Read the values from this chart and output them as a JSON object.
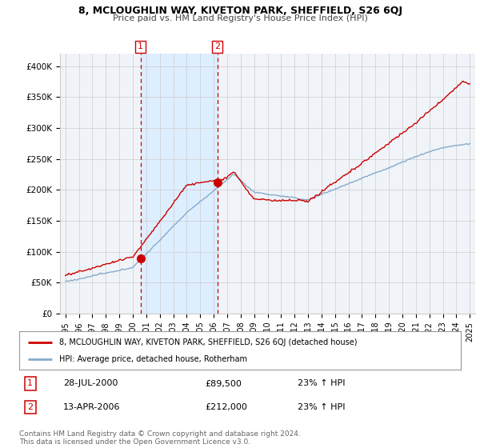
{
  "title": "8, MCLOUGHLIN WAY, KIVETON PARK, SHEFFIELD, S26 6QJ",
  "subtitle": "Price paid vs. HM Land Registry's House Price Index (HPI)",
  "legend_line1": "8, MCLOUGHLIN WAY, KIVETON PARK, SHEFFIELD, S26 6QJ (detached house)",
  "legend_line2": "HPI: Average price, detached house, Rotherham",
  "sale1_label": "1",
  "sale1_date": "28-JUL-2000",
  "sale1_price": "£89,500",
  "sale1_hpi": "23% ↑ HPI",
  "sale2_label": "2",
  "sale2_date": "13-APR-2006",
  "sale2_price": "£212,000",
  "sale2_hpi": "23% ↑ HPI",
  "footer": "Contains HM Land Registry data © Crown copyright and database right 2024.\nThis data is licensed under the Open Government Licence v3.0.",
  "property_color": "#cc0000",
  "hpi_color": "#88aacc",
  "shade_color": "#ddeeff",
  "background_color": "#ffffff",
  "plot_bg_color": "#f0f4f8",
  "grid_color": "#cccccc",
  "ylim": [
    0,
    420000
  ],
  "yticks": [
    0,
    50000,
    100000,
    150000,
    200000,
    250000,
    300000,
    350000,
    400000
  ],
  "ytick_labels": [
    "£0",
    "£50K",
    "£100K",
    "£150K",
    "£200K",
    "£250K",
    "£300K",
    "£350K",
    "£400K"
  ],
  "sale1_x": 2000.57,
  "sale1_y": 89500,
  "sale2_x": 2006.28,
  "sale2_y": 212000,
  "vline1_x": 2000.57,
  "vline2_x": 2006.28,
  "xlim_left": 1994.6,
  "xlim_right": 2025.4
}
